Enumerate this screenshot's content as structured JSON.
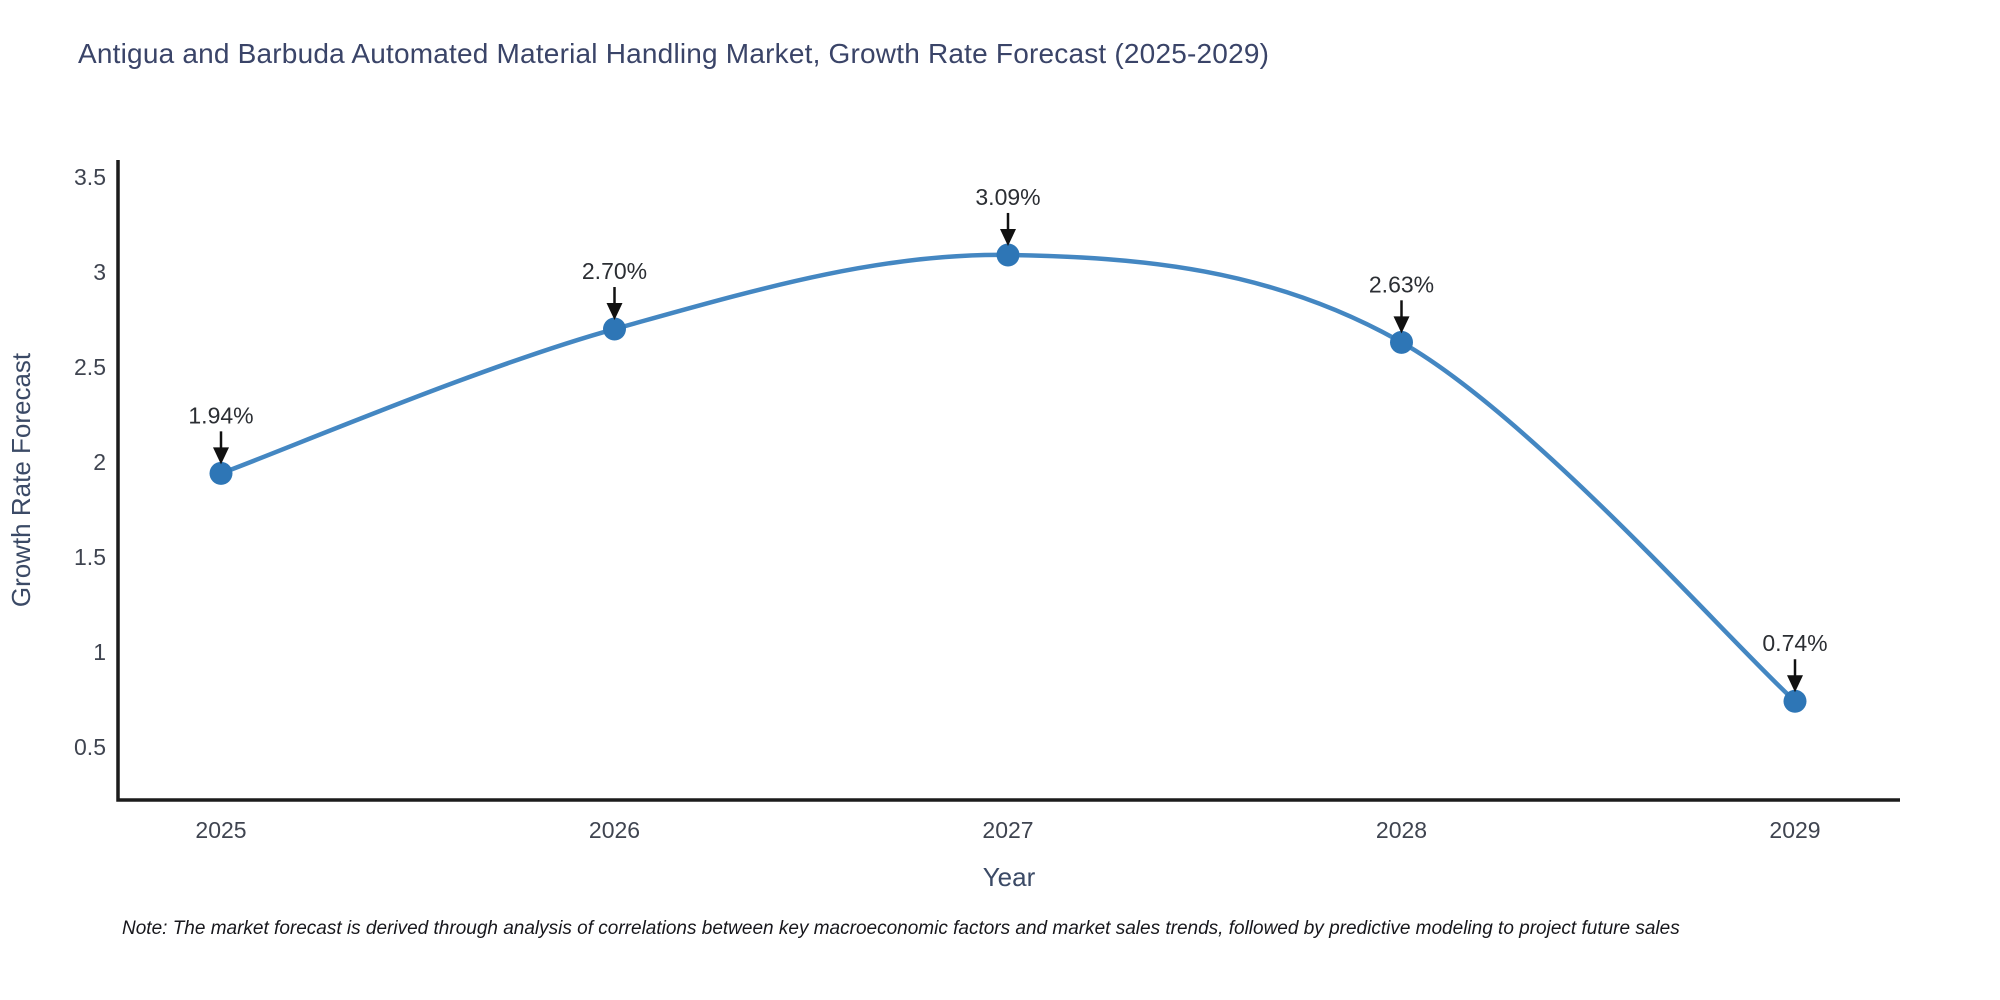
{
  "title": "Antigua and Barbuda Automated Material Handling Market, Growth Rate Forecast (2025-2029)",
  "note": "Note: The market forecast is derived through analysis of correlations between key macroeconomic factors and market sales trends, followed by predictive modeling to project future sales",
  "chart_data": {
    "type": "line",
    "line_shape": "spline",
    "x": [
      2025,
      2026,
      2027,
      2028,
      2029
    ],
    "series": [
      {
        "name": "Growth Rate Forecast",
        "values": [
          1.94,
          2.7,
          3.09,
          2.63,
          0.74
        ]
      }
    ],
    "point_labels": [
      "1.94%",
      "2.70%",
      "3.09%",
      "2.63%",
      "0.74%"
    ],
    "xlabel": "Year",
    "ylabel": "Growth Rate Forecast",
    "yticks": [
      0.5,
      1,
      1.5,
      2,
      2.5,
      3,
      3.5
    ],
    "ylim": [
      0.22,
      3.59
    ],
    "grid": false,
    "legend": "none",
    "colors": {
      "line": "#4487c2",
      "marker": "#2e76b6",
      "axis": "#1c1c1c",
      "arrow": "#111111",
      "title_text": "#3a4468",
      "tick_text": "#3f4450"
    }
  }
}
